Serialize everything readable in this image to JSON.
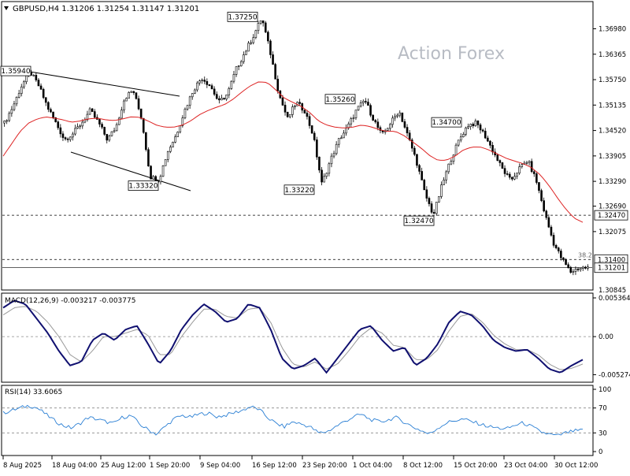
{
  "chart_data": {
    "type": "candlestick",
    "symbol_line": "GBPUSD,H4  1.31206 1.31254 1.31147 1.31201",
    "watermark": "Action Forex",
    "x_tick_labels": [
      "8 Aug 2025",
      "18 Aug 04:00",
      "25 Aug 12:00",
      "1 Sep 20:00",
      "9 Sep 04:00",
      "16 Sep 12:00",
      "23 Sep 20:00",
      "1 Oct 04:00",
      "8 Oct 12:00",
      "15 Oct 20:00",
      "23 Oct 04:00",
      "30 Oct 12:00"
    ],
    "price_panel": {
      "ylim": [
        1.307,
        1.376
      ],
      "y_ticks": [
        "1.36980",
        "1.36365",
        "1.35750",
        "1.35135",
        "1.34520",
        "1.33905",
        "1.33290",
        "1.32690",
        "1.32075"
      ],
      "y_bottom_tick": "1.30845",
      "close_markers": [
        {
          "label": "1.32470",
          "value": 1.3247
        },
        {
          "label": "1.31400",
          "value": 1.314
        },
        {
          "label": "1.31201",
          "value": 1.31201
        }
      ],
      "fib_label": "38.2",
      "swing_labels": [
        {
          "text": "1.35940",
          "value": 1.3594
        },
        {
          "text": "1.33320",
          "value": 1.3332
        },
        {
          "text": "1.37250",
          "value": 1.3725
        },
        {
          "text": "1.33220",
          "value": 1.3322
        },
        {
          "text": "1.35260",
          "value": 1.3526
        },
        {
          "text": "1.32470",
          "value": 1.3247
        },
        {
          "text": "1.34700",
          "value": 1.347
        }
      ],
      "price_path": [
        1.347,
        1.351,
        1.356,
        1.3594,
        1.356,
        1.351,
        1.347,
        1.343,
        1.3445,
        1.347,
        1.35,
        1.347,
        1.343,
        1.346,
        1.353,
        1.355,
        1.348,
        1.334,
        1.3332,
        1.34,
        1.344,
        1.35,
        1.355,
        1.358,
        1.356,
        1.352,
        1.354,
        1.36,
        1.364,
        1.368,
        1.3725,
        1.364,
        1.354,
        1.348,
        1.352,
        1.35,
        1.344,
        1.3322,
        1.338,
        1.343,
        1.346,
        1.35,
        1.3526,
        1.348,
        1.344,
        1.347,
        1.35,
        1.344,
        1.338,
        1.33,
        1.3247,
        1.332,
        1.338,
        1.343,
        1.3465,
        1.347,
        1.344,
        1.34,
        1.336,
        1.333,
        1.336,
        1.338,
        1.333,
        1.325,
        1.318,
        1.314,
        1.311,
        1.312,
        1.312
      ],
      "ma_path": [
        1.339,
        1.342,
        1.345,
        1.347,
        1.348,
        1.3485,
        1.3482,
        1.3478,
        1.3472,
        1.3475,
        1.348,
        1.3482,
        1.3478,
        1.3476,
        1.348,
        1.3485,
        1.3484,
        1.3475,
        1.3465,
        1.346,
        1.346,
        1.3465,
        1.3475,
        1.349,
        1.35,
        1.3508,
        1.3515,
        1.3528,
        1.3545,
        1.356,
        1.357,
        1.3568,
        1.355,
        1.353,
        1.352,
        1.351,
        1.3495,
        1.3475,
        1.3465,
        1.346,
        1.3458,
        1.346,
        1.3465,
        1.3462,
        1.3455,
        1.345,
        1.345,
        1.344,
        1.3425,
        1.341,
        1.3392,
        1.338,
        1.338,
        1.339,
        1.3405,
        1.3412,
        1.3412,
        1.3405,
        1.3395,
        1.3385,
        1.3378,
        1.3372,
        1.3362,
        1.3345,
        1.332,
        1.329,
        1.3262,
        1.324,
        1.323
      ]
    },
    "macd_panel": {
      "label": "MACD(12,26,9) -0.003217 -0.003775",
      "ylim": [
        -0.0061,
        0.0058
      ],
      "y_ticks": [
        "0.005364",
        "0.00",
        "-0.005274"
      ],
      "zero_label": "0.00",
      "macd_path": [
        0.004,
        0.005,
        0.0045,
        0.0025,
        0.0005,
        -0.002,
        -0.004,
        -0.0035,
        -0.0005,
        0.0005,
        -0.0005,
        0.001,
        0.0015,
        -0.001,
        -0.0038,
        -0.002,
        0.001,
        0.003,
        0.0045,
        0.0035,
        0.002,
        0.0025,
        0.0045,
        0.004,
        0.001,
        -0.003,
        -0.0045,
        -0.004,
        -0.003,
        -0.005,
        -0.003,
        -0.001,
        0.001,
        0.0015,
        -0.0005,
        -0.002,
        -0.0015,
        -0.004,
        -0.003,
        -0.001,
        0.002,
        0.0035,
        0.003,
        0.0015,
        -0.0005,
        -0.0015,
        -0.002,
        -0.0018,
        -0.003,
        -0.0045,
        -0.005,
        -0.004,
        -0.0032
      ],
      "signal_path": [
        0.003,
        0.004,
        0.0042,
        0.0035,
        0.002,
        0.0,
        -0.0025,
        -0.0035,
        -0.002,
        0.0,
        0.0,
        0.0005,
        0.001,
        0.0002,
        -0.0025,
        -0.0025,
        0.0,
        0.002,
        0.0038,
        0.0038,
        0.0028,
        0.0026,
        0.0038,
        0.004,
        0.002,
        -0.0015,
        -0.0038,
        -0.0042,
        -0.0035,
        -0.0045,
        -0.0038,
        -0.002,
        0.0,
        0.0012,
        0.0005,
        -0.0012,
        -0.0015,
        -0.0032,
        -0.0032,
        -0.0018,
        0.0008,
        0.0028,
        0.0032,
        0.002,
        0.0002,
        -0.001,
        -0.0018,
        -0.0018,
        -0.0025,
        -0.0038,
        -0.0046,
        -0.0044,
        -0.0038
      ]
    },
    "rsi_panel": {
      "label": "RSI(14) 33.6065",
      "ylim": [
        0,
        100
      ],
      "y_ticks": [
        "100",
        "70",
        "30",
        "0"
      ],
      "levels": [
        70,
        30
      ],
      "rsi_path": [
        62,
        66,
        70,
        74,
        70,
        60,
        50,
        42,
        38,
        45,
        55,
        52,
        48,
        45,
        55,
        58,
        44,
        35,
        28,
        40,
        52,
        58,
        55,
        60,
        62,
        56,
        58,
        62,
        66,
        72,
        68,
        55,
        45,
        40,
        48,
        44,
        40,
        30,
        32,
        40,
        48,
        55,
        60,
        52,
        48,
        50,
        55,
        48,
        40,
        34,
        28,
        38,
        46,
        50,
        52,
        48,
        44,
        40,
        38,
        36,
        42,
        46,
        40,
        32,
        28,
        25,
        30,
        33,
        34
      ]
    }
  }
}
